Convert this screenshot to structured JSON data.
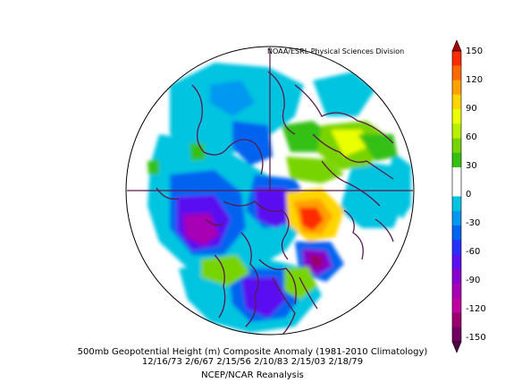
{
  "credit": "NOAA/ESRL Physical Sciences Division",
  "caption": {
    "line1": "500mb Geopotential Height (m) Composite Anomaly (1981-2010 Climatology)",
    "line2": "12/16/73 2/6/67 2/15/56 2/10/83 2/15/03 2/18/79",
    "line3": "NCEP/NCAR Reanalysis"
  },
  "colorbar": {
    "labels": [
      "150",
      "120",
      "90",
      "60",
      "30",
      "0",
      "-30",
      "-60",
      "-90",
      "-120",
      "-150"
    ],
    "colors": [
      "#fe2a00",
      "#ff6a00",
      "#ffa100",
      "#ffd500",
      "#eaff00",
      "#b8f000",
      "#78d400",
      "#36c012",
      "#ffffff",
      "#ffffff",
      "#00c4e0",
      "#0098f0",
      "#0064f0",
      "#2830ff",
      "#5a10f0",
      "#8800d0",
      "#a800b4",
      "#c000a0",
      "#9a006c",
      "#700060"
    ],
    "top_arrow_color": "#a80000",
    "bottom_arrow_color": "#500048"
  }
}
